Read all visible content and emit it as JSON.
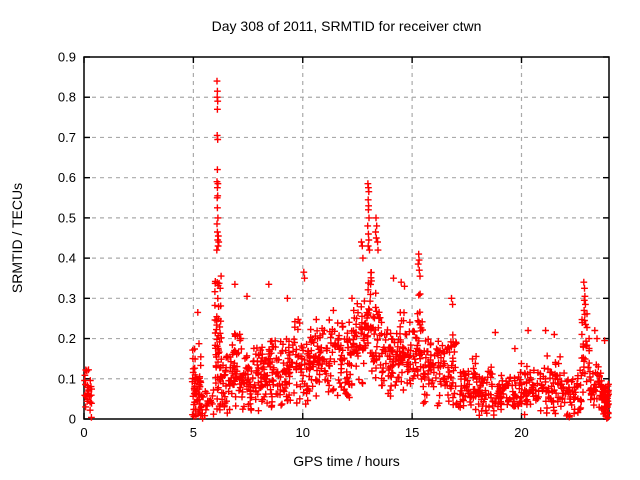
{
  "chart_data": {
    "type": "scatter",
    "title": "Day 308 of 2011, SRMTID for receiver ctwn",
    "xlabel": "GPS time / hours",
    "ylabel": "SRMTID / TECUs",
    "xlim": [
      0,
      24
    ],
    "ylim": [
      0,
      0.9
    ],
    "xticks": {
      "values": [
        0,
        5,
        10,
        15,
        20
      ],
      "labels": [
        "0",
        "5",
        "10",
        "15",
        "20"
      ]
    },
    "yticks": {
      "values": [
        0,
        0.1,
        0.2,
        0.3,
        0.4,
        0.5,
        0.6,
        0.7,
        0.8,
        0.9
      ],
      "labels": [
        "0",
        "0.1",
        "0.2",
        "0.3",
        "0.4",
        "0.5",
        "0.6",
        "0.7",
        "0.8",
        "0.9"
      ]
    },
    "grid": true,
    "legend": "none",
    "marker": "plus",
    "marker_color": "#ff0000",
    "grid_color": "#aaaaaa",
    "border_color": "#000000",
    "background_color": "#ffffff",
    "seed": 308,
    "bands": [
      {
        "x0": 0.02,
        "x1": 0.35,
        "n": 26,
        "mode": 0.055,
        "spread": 0.08,
        "min": 0.0,
        "max": 0.13
      },
      {
        "x0": 4.95,
        "x1": 5.35,
        "n": 60,
        "mode": 0.08,
        "spread": 0.13,
        "min": 0.005,
        "max": 0.26
      },
      {
        "x0": 5.35,
        "x1": 5.95,
        "n": 20,
        "mode": 0.035,
        "spread": 0.06,
        "min": 0.0,
        "max": 0.12
      },
      {
        "x0": 5.98,
        "x1": 6.28,
        "n": 55,
        "mode": 0.17,
        "spread": 0.2,
        "min": 0.02,
        "max": 0.44
      },
      {
        "x0": 6.28,
        "x1": 6.7,
        "n": 30,
        "mode": 0.09,
        "spread": 0.1,
        "min": 0.01,
        "max": 0.2
      },
      {
        "x0": 6.7,
        "x1": 7.15,
        "n": 42,
        "mode": 0.12,
        "spread": 0.12,
        "min": 0.02,
        "max": 0.33
      },
      {
        "x0": 7.15,
        "x1": 7.7,
        "n": 45,
        "mode": 0.1,
        "spread": 0.11,
        "min": 0.02,
        "max": 0.3
      },
      {
        "x0": 7.7,
        "x1": 8.25,
        "n": 45,
        "mode": 0.1,
        "spread": 0.1,
        "min": 0.02,
        "max": 0.24
      },
      {
        "x0": 8.25,
        "x1": 8.7,
        "n": 40,
        "mode": 0.11,
        "spread": 0.12,
        "min": 0.02,
        "max": 0.33
      },
      {
        "x0": 8.7,
        "x1": 9.6,
        "n": 62,
        "mode": 0.11,
        "spread": 0.1,
        "min": 0.02,
        "max": 0.27
      },
      {
        "x0": 9.6,
        "x1": 10.4,
        "n": 62,
        "mode": 0.14,
        "spread": 0.12,
        "min": 0.03,
        "max": 0.36
      },
      {
        "x0": 10.4,
        "x1": 11.3,
        "n": 66,
        "mode": 0.15,
        "spread": 0.11,
        "min": 0.04,
        "max": 0.3
      },
      {
        "x0": 11.3,
        "x1": 12.2,
        "n": 66,
        "mode": 0.16,
        "spread": 0.12,
        "min": 0.04,
        "max": 0.31
      },
      {
        "x0": 12.2,
        "x1": 12.85,
        "n": 52,
        "mode": 0.18,
        "spread": 0.13,
        "min": 0.05,
        "max": 0.42
      },
      {
        "x0": 12.85,
        "x1": 13.15,
        "n": 32,
        "mode": 0.25,
        "spread": 0.15,
        "min": 0.08,
        "max": 0.41
      },
      {
        "x0": 13.15,
        "x1": 13.6,
        "n": 36,
        "mode": 0.2,
        "spread": 0.14,
        "min": 0.06,
        "max": 0.4
      },
      {
        "x0": 13.6,
        "x1": 14.4,
        "n": 60,
        "mode": 0.15,
        "spread": 0.11,
        "min": 0.04,
        "max": 0.3
      },
      {
        "x0": 14.4,
        "x1": 15.2,
        "n": 60,
        "mode": 0.16,
        "spread": 0.11,
        "min": 0.04,
        "max": 0.33
      },
      {
        "x0": 15.2,
        "x1": 15.5,
        "n": 26,
        "mode": 0.2,
        "spread": 0.13,
        "min": 0.06,
        "max": 0.39
      },
      {
        "x0": 15.5,
        "x1": 16.4,
        "n": 62,
        "mode": 0.12,
        "spread": 0.1,
        "min": 0.02,
        "max": 0.26
      },
      {
        "x0": 16.4,
        "x1": 17.1,
        "n": 46,
        "mode": 0.12,
        "spread": 0.1,
        "min": 0.02,
        "max": 0.29
      },
      {
        "x0": 17.1,
        "x1": 18.0,
        "n": 56,
        "mode": 0.08,
        "spread": 0.08,
        "min": 0.01,
        "max": 0.22
      },
      {
        "x0": 18.0,
        "x1": 18.9,
        "n": 52,
        "mode": 0.07,
        "spread": 0.07,
        "min": 0.005,
        "max": 0.21
      },
      {
        "x0": 18.9,
        "x1": 19.8,
        "n": 52,
        "mode": 0.06,
        "spread": 0.06,
        "min": 0.0,
        "max": 0.17
      },
      {
        "x0": 19.8,
        "x1": 20.9,
        "n": 62,
        "mode": 0.07,
        "spread": 0.07,
        "min": 0.0,
        "max": 0.22
      },
      {
        "x0": 20.9,
        "x1": 21.9,
        "n": 62,
        "mode": 0.08,
        "spread": 0.08,
        "min": 0.0,
        "max": 0.22
      },
      {
        "x0": 21.9,
        "x1": 22.75,
        "n": 52,
        "mode": 0.07,
        "spread": 0.07,
        "min": 0.0,
        "max": 0.17
      },
      {
        "x0": 22.75,
        "x1": 23.1,
        "n": 26,
        "mode": 0.17,
        "spread": 0.12,
        "min": 0.04,
        "max": 0.3
      },
      {
        "x0": 23.1,
        "x1": 23.65,
        "n": 36,
        "mode": 0.08,
        "spread": 0.08,
        "min": 0.0,
        "max": 0.2
      },
      {
        "x0": 23.65,
        "x1": 24.0,
        "n": 58,
        "mode": 0.05,
        "spread": 0.06,
        "min": 0.0,
        "max": 0.15
      }
    ],
    "outlier_points": [
      [
        6.08,
        0.84
      ],
      [
        6.1,
        0.815
      ],
      [
        6.09,
        0.8
      ],
      [
        6.11,
        0.79
      ],
      [
        6.1,
        0.77
      ],
      [
        6.09,
        0.705
      ],
      [
        6.11,
        0.695
      ],
      [
        6.1,
        0.62
      ],
      [
        6.08,
        0.59
      ],
      [
        6.12,
        0.585
      ],
      [
        6.1,
        0.575
      ],
      [
        6.11,
        0.555
      ],
      [
        6.09,
        0.55
      ],
      [
        6.1,
        0.525
      ],
      [
        6.12,
        0.5
      ],
      [
        6.08,
        0.485
      ],
      [
        6.1,
        0.465
      ],
      [
        6.14,
        0.455
      ],
      [
        6.11,
        0.445
      ],
      [
        6.13,
        0.43
      ],
      [
        6.07,
        0.42
      ],
      [
        6.16,
        0.44
      ],
      [
        12.98,
        0.585
      ],
      [
        13.0,
        0.575
      ],
      [
        13.02,
        0.565
      ],
      [
        12.99,
        0.545
      ],
      [
        13.01,
        0.53
      ],
      [
        13.0,
        0.52
      ],
      [
        13.03,
        0.5
      ],
      [
        12.97,
        0.48
      ],
      [
        13.0,
        0.46
      ],
      [
        13.02,
        0.445
      ],
      [
        12.99,
        0.43
      ],
      [
        13.05,
        0.42
      ],
      [
        13.35,
        0.5
      ],
      [
        13.38,
        0.48
      ],
      [
        13.33,
        0.465
      ],
      [
        13.36,
        0.45
      ],
      [
        13.42,
        0.44
      ],
      [
        13.44,
        0.42
      ],
      [
        12.68,
        0.44
      ],
      [
        12.72,
        0.43
      ],
      [
        12.75,
        0.4
      ],
      [
        15.3,
        0.41
      ],
      [
        15.32,
        0.395
      ],
      [
        15.28,
        0.385
      ],
      [
        15.33,
        0.37
      ],
      [
        15.36,
        0.355
      ],
      [
        14.15,
        0.35
      ],
      [
        14.5,
        0.34
      ],
      [
        14.65,
        0.33
      ],
      [
        10.05,
        0.365
      ],
      [
        10.08,
        0.35
      ],
      [
        12.25,
        0.3
      ],
      [
        11.4,
        0.27
      ],
      [
        16.8,
        0.3
      ],
      [
        16.85,
        0.285
      ],
      [
        8.45,
        0.335
      ],
      [
        6.9,
        0.335
      ],
      [
        7.45,
        0.305
      ],
      [
        5.2,
        0.265
      ],
      [
        9.3,
        0.3
      ],
      [
        18.8,
        0.215
      ],
      [
        19.7,
        0.175
      ],
      [
        20.3,
        0.22
      ],
      [
        21.1,
        0.22
      ],
      [
        21.5,
        0.21
      ],
      [
        22.85,
        0.34
      ],
      [
        22.88,
        0.325
      ],
      [
        22.9,
        0.305
      ],
      [
        22.87,
        0.295
      ],
      [
        22.92,
        0.285
      ],
      [
        22.86,
        0.27
      ],
      [
        22.9,
        0.26
      ],
      [
        22.88,
        0.245
      ],
      [
        22.93,
        0.235
      ],
      [
        23.35,
        0.22
      ],
      [
        23.45,
        0.2
      ],
      [
        23.8,
        0.195
      ]
    ]
  }
}
